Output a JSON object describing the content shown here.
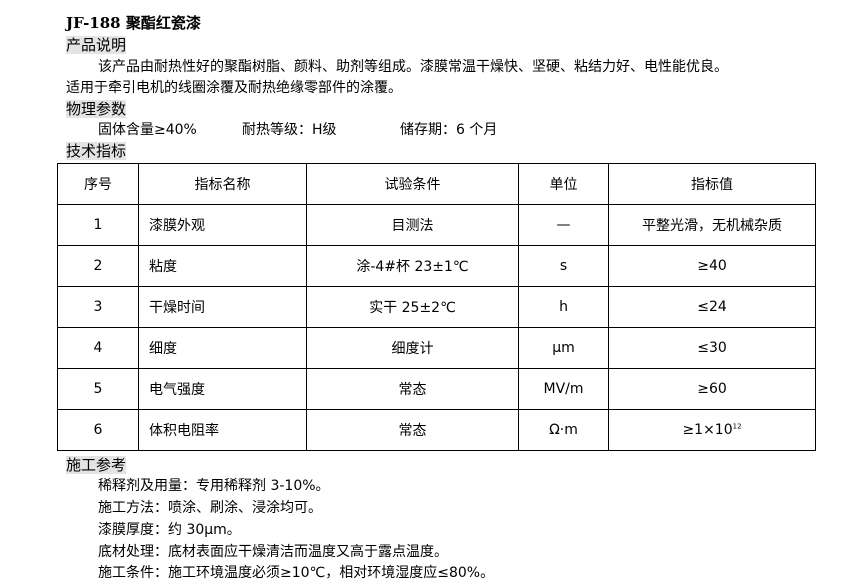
{
  "title": "JF-188 聚酯红瓷漆",
  "sections": {
    "desc_heading": "产品说明",
    "desc_line1": "该产品由耐热性好的聚酯树脂、颜料、助剂等组成。漆膜常温干燥快、坚硬、粘结力好、电性能优良。",
    "desc_line2": "适用于牵引电机的线圈涂覆及耐热绝缘零部件的涂覆。",
    "phys_heading": "物理参数",
    "phys": [
      "固体含量≥40%",
      "耐热等级：H级",
      "储存期：6 个月"
    ],
    "tech_heading": "技术指标",
    "constr_heading": "施工参考",
    "constr": [
      "稀释剂及用量：专用稀释剂 3-10%。",
      "施工方法：喷涂、刷涂、浸涂均可。",
      "漆膜厚度：约 30μm。",
      "底材处理：底材表面应干燥清洁而温度又高于露点温度。",
      "施工条件：施工环境温度必须≥10℃，相对环境湿度应≤80%。"
    ]
  },
  "table": {
    "headers": [
      "序号",
      "指标名称",
      "试验条件",
      "单位",
      "指标值"
    ],
    "rows": [
      [
        "1",
        "漆膜外观",
        "目测法",
        "—",
        "平整光滑，无机械杂质"
      ],
      [
        "2",
        "粘度",
        "涂-4#杯 23±1℃",
        "s",
        "≥40"
      ],
      [
        "3",
        "干燥时间",
        "实干 25±2℃",
        "h",
        "≤24"
      ],
      [
        "4",
        "细度",
        "细度计",
        "μm",
        "≤30"
      ],
      [
        "5",
        "电气强度",
        "常态",
        "MV/m",
        "≥60"
      ],
      [
        "6",
        "体积电阻率",
        "常态",
        "Ω·m",
        "≥1×10"
      ]
    ],
    "last_sup": "12"
  }
}
